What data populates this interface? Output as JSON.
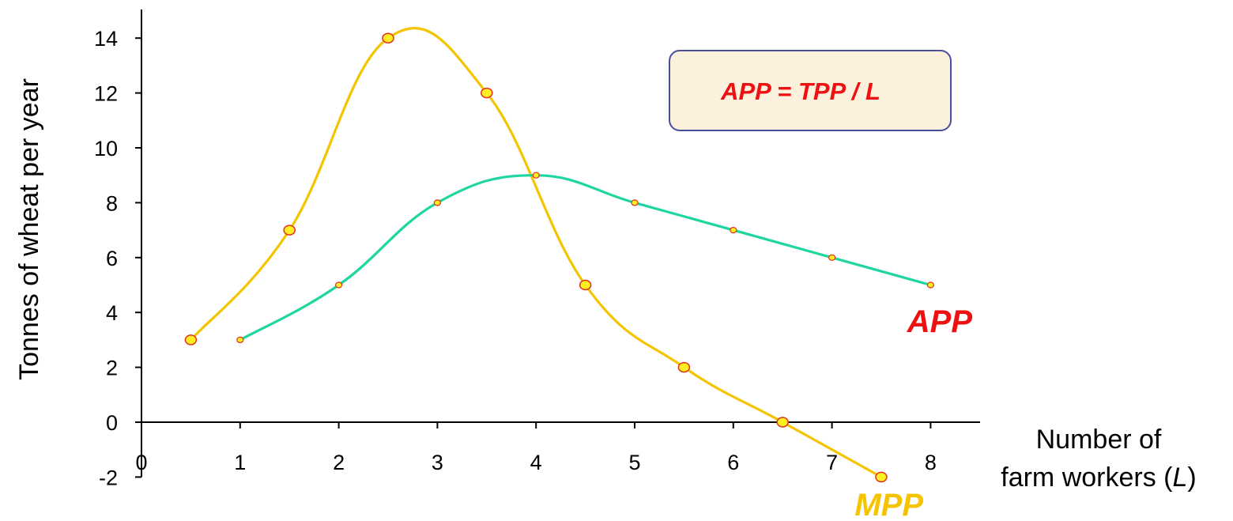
{
  "chart_data": {
    "type": "line",
    "ylabel": "Tonnes of wheat  per year",
    "xlabel_line1": "Number of",
    "xlabel_line2_prefix": "farm workers (",
    "xlabel_line2_var": "L",
    "xlabel_line2_suffix": ")",
    "xlim": [
      0,
      8
    ],
    "ylim": [
      -2,
      14
    ],
    "x_ticks": [
      "0",
      "1",
      "2",
      "3",
      "4",
      "5",
      "6",
      "7",
      "8"
    ],
    "y_ticks": [
      "-2",
      "0",
      "2",
      "4",
      "6",
      "8",
      "10",
      "12",
      "14"
    ],
    "grid": false,
    "series": [
      {
        "name": "MPP",
        "color": "#f5c400",
        "points": [
          [
            0.5,
            3
          ],
          [
            1.5,
            7
          ],
          [
            2.5,
            14
          ],
          [
            3.5,
            12
          ],
          [
            4.5,
            5
          ],
          [
            5.5,
            2
          ],
          [
            6.5,
            0
          ],
          [
            7.5,
            -2
          ]
        ]
      },
      {
        "name": "APP",
        "color": "#1fd6a0",
        "label_color": "#ee1111",
        "points": [
          [
            1,
            3
          ],
          [
            2,
            5
          ],
          [
            3,
            8
          ],
          [
            4,
            9
          ],
          [
            5,
            8
          ],
          [
            6,
            7
          ],
          [
            7,
            6
          ],
          [
            8,
            5
          ]
        ]
      }
    ],
    "annotation": {
      "text": "APP = TPP / L",
      "text_color": "#ee1111",
      "box_fill": "#fbf1dc",
      "box_border": "#4a4f9a"
    },
    "marker_fill": "#ffee22",
    "marker_stroke": "#e0301c"
  }
}
